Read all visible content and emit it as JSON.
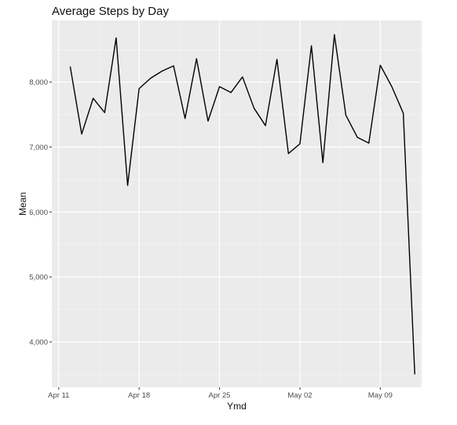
{
  "chart_data": {
    "type": "line",
    "title": "Average Steps by Day",
    "xlabel": "Ymd",
    "ylabel": "Mean",
    "x_ticks": [
      "Apr 11",
      "Apr 18",
      "Apr 25",
      "May 02",
      "May 09"
    ],
    "y_ticks": [
      "4,000",
      "5,000",
      "6,000",
      "7,000",
      "8,000"
    ],
    "xlim": [
      "2016-04-11",
      "2016-05-12"
    ],
    "ylim": [
      3300,
      8950
    ],
    "grid": true,
    "series": [
      {
        "x": [
          "2016-04-12",
          "2016-04-13",
          "2016-04-14",
          "2016-04-15",
          "2016-04-16",
          "2016-04-17",
          "2016-04-18",
          "2016-04-19",
          "2016-04-20",
          "2016-04-21",
          "2016-04-22",
          "2016-04-23",
          "2016-04-24",
          "2016-04-25",
          "2016-04-26",
          "2016-04-27",
          "2016-04-28",
          "2016-04-29",
          "2016-04-30",
          "2016-05-01",
          "2016-05-02",
          "2016-05-03",
          "2016-05-04",
          "2016-05-05",
          "2016-05-06",
          "2016-05-07",
          "2016-05-08",
          "2016-05-09",
          "2016-05-10",
          "2016-05-11",
          "2016-05-12"
        ],
        "values": [
          8240,
          7200,
          7750,
          7530,
          8680,
          6410,
          7900,
          8060,
          8170,
          8250,
          7440,
          8360,
          7400,
          7930,
          7840,
          8080,
          7600,
          7330,
          8350,
          6900,
          7050,
          8560,
          6760,
          8730,
          7490,
          7150,
          7060,
          8260,
          7930,
          7520,
          3500
        ],
        "color": "#000000"
      }
    ],
    "colors": {
      "panel": "#ebebeb",
      "grid_major": "#ffffff",
      "grid_minor": "#f5f5f5",
      "line": "#000000",
      "tick_text": "#4d4d4d",
      "axis_title": "#111111"
    }
  }
}
